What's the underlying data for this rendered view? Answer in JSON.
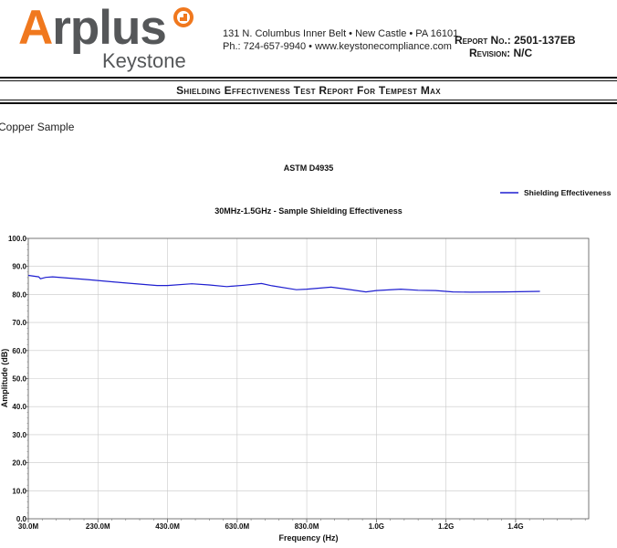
{
  "header": {
    "logo_main_a": "A",
    "logo_main_rest": "rplus",
    "logo_sub": "Keystone",
    "address_line1": "131 N. Columbus Inner Belt • New Castle • PA 16101",
    "address_line2": "Ph.: 724-657-9940 • www.keystonecompliance.com",
    "report_no_label": "Report No.:",
    "report_no_value": "2501-137EB",
    "revision_label": "Revision:",
    "revision_value": "N/C"
  },
  "doc_title": "Shielding Effectiveness Test Report For Tempest Max",
  "sample_label": "Copper Sample",
  "colors": {
    "accent": "#f0781e",
    "series": "#1f1fd0",
    "grid": "#c8c8c8"
  },
  "chart_data": {
    "type": "line",
    "title": "ASTM D4935",
    "subtitle": "30MHz-1.5GHz - Sample Shielding Effectiveness",
    "xlabel": "Frequency (Hz)",
    "ylabel": "Amplitude (dB)",
    "xlim": [
      30,
      1640
    ],
    "ylim": [
      0,
      100
    ],
    "x_unit": "MHz",
    "x_ticks": [
      {
        "value": 30,
        "label": "30.0M"
      },
      {
        "value": 230,
        "label": "230.0M"
      },
      {
        "value": 430,
        "label": "430.0M"
      },
      {
        "value": 630,
        "label": "630.0M"
      },
      {
        "value": 830,
        "label": "830.0M"
      },
      {
        "value": 1030,
        "label": "1.0G"
      },
      {
        "value": 1230,
        "label": "1.2G"
      },
      {
        "value": 1430,
        "label": "1.4G"
      }
    ],
    "y_ticks": [
      {
        "value": 0,
        "label": "0.0"
      },
      {
        "value": 10,
        "label": "10.0"
      },
      {
        "value": 20,
        "label": "20.0"
      },
      {
        "value": 30,
        "label": "30.0"
      },
      {
        "value": 40,
        "label": "40.0"
      },
      {
        "value": 50,
        "label": "50.0"
      },
      {
        "value": 60,
        "label": "60.0"
      },
      {
        "value": 70,
        "label": "70.0"
      },
      {
        "value": 80,
        "label": "80.0"
      },
      {
        "value": 90,
        "label": "90.0"
      },
      {
        "value": 100,
        "label": "100.0"
      }
    ],
    "grid": true,
    "legend_position": "top-right",
    "series": [
      {
        "name": "Shielding Effectiveness",
        "x": [
          30,
          60,
          65,
          80,
          100,
          150,
          200,
          300,
          400,
          430,
          500,
          550,
          600,
          650,
          700,
          730,
          800,
          830,
          900,
          950,
          1000,
          1030,
          1100,
          1150,
          1200,
          1250,
          1300,
          1400,
          1500
        ],
        "y": [
          86.8,
          86.3,
          85.6,
          86.1,
          86.3,
          85.8,
          85.3,
          84.2,
          83.2,
          83.2,
          83.8,
          83.4,
          82.8,
          83.3,
          83.9,
          83.1,
          81.7,
          81.9,
          82.6,
          81.8,
          80.9,
          81.4,
          81.9,
          81.5,
          81.4,
          80.9,
          80.8,
          80.9,
          81.1
        ]
      }
    ]
  }
}
